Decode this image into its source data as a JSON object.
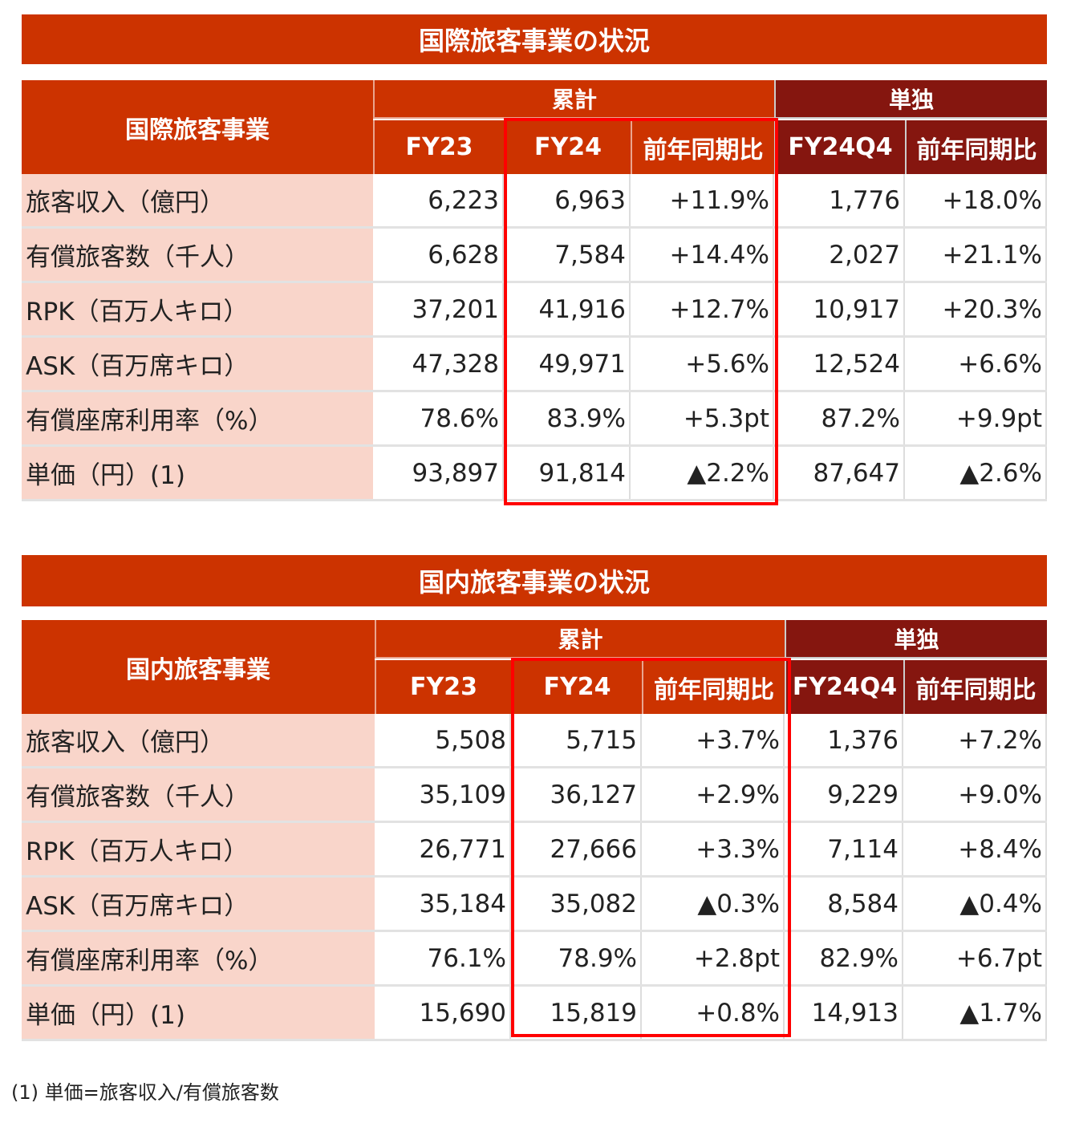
{
  "tables": [
    {
      "title": "国際旅客事業の状況",
      "corner": "国際旅客事業",
      "group_cum": "累計",
      "group_single": "単独",
      "cols": [
        "FY23",
        "FY24",
        "前年同期比",
        "FY24Q4",
        "前年同期比"
      ],
      "rows": [
        [
          "旅客収入（億円）",
          "6,223",
          "6,963",
          "+11.9%",
          "1,776",
          "+18.0%"
        ],
        [
          "有償旅客数（千人）",
          "6,628",
          "7,584",
          "+14.4%",
          "2,027",
          "+21.1%"
        ],
        [
          "RPK（百万人キロ）",
          "37,201",
          "41,916",
          "+12.7%",
          "10,917",
          "+20.3%"
        ],
        [
          "ASK（百万席キロ）",
          "47,328",
          "49,971",
          "+5.6%",
          "12,524",
          "+6.6%"
        ],
        [
          "有償座席利用率（%）",
          "78.6%",
          "83.9%",
          "+5.3pt",
          "87.2%",
          "+9.9pt"
        ],
        [
          "単価（円）(1)",
          "93,897",
          "91,814",
          "▲2.2%",
          "87,647",
          "▲2.6%"
        ]
      ]
    },
    {
      "title": "国内旅客事業の状況",
      "corner": "国内旅客事業",
      "group_cum": "累計",
      "group_single": "単独",
      "cols": [
        "FY23",
        "FY24",
        "前年同期比",
        "FY24Q4",
        "前年同期比"
      ],
      "rows": [
        [
          "旅客収入（億円）",
          "5,508",
          "5,715",
          "+3.7%",
          "1,376",
          "+7.2%"
        ],
        [
          "有償旅客数（千人）",
          "35,109",
          "36,127",
          "+2.9%",
          "9,229",
          "+9.0%"
        ],
        [
          "RPK（百万人キロ）",
          "26,771",
          "27,666",
          "+3.3%",
          "7,114",
          "+8.4%"
        ],
        [
          "ASK（百万席キロ）",
          "35,184",
          "35,082",
          "▲0.3%",
          "8,584",
          "▲0.4%"
        ],
        [
          "有償座席利用率（%）",
          "76.1%",
          "78.9%",
          "+2.8pt",
          "82.9%",
          "+6.7pt"
        ],
        [
          "単価（円）(1)",
          "15,690",
          "15,819",
          "+0.8%",
          "14,913",
          "▲1.7%"
        ]
      ]
    }
  ],
  "footnote": "(1) 単価=旅客収入/有償旅客数"
}
